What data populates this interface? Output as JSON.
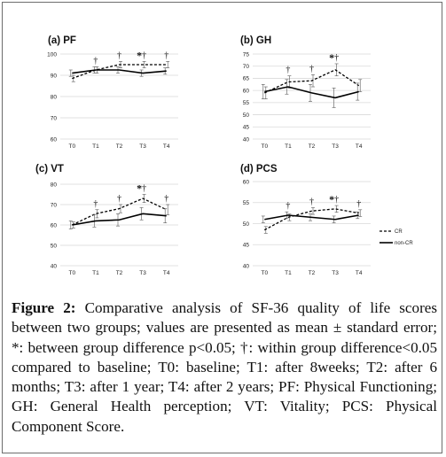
{
  "figure": {
    "caption_label": "Figure 2:",
    "caption_text": "Comparative analysis of SF-36 quality of life scores between two groups; values are presented as mean ± standard error; *: between group difference p<0.05; †: within group difference<0.05 compared to baseline; T0: baseline; T1: after 8weeks; T2: after 6 months; T3: after 1 year; T4: after 2 years; PF: Physical Functioning; GH: General Health perception; VT: Vitality; PCS: Physical Component Score."
  },
  "legend": {
    "items": [
      "CR",
      "non-CR"
    ],
    "placement": "right, beside panel (d)"
  },
  "styles": {
    "cr_line": "dashed",
    "noncr_line": "solid",
    "line_color": "#000000",
    "grid_color": "#d9d9d9"
  },
  "chart_data": [
    {
      "type": "line",
      "title": "(a) PF",
      "categories": [
        "T0",
        "T1",
        "T2",
        "T3",
        "T4"
      ],
      "ylim": [
        60,
        100
      ],
      "yticks": [
        60,
        70,
        80,
        90,
        100
      ],
      "grid": true,
      "series": [
        {
          "name": "CR",
          "values": [
            88.5,
            92.5,
            95,
            95,
            95
          ],
          "errors": [
            1.5,
            1.5,
            1.5,
            1.5,
            1.5
          ]
        },
        {
          "name": "non-CR",
          "values": [
            91,
            92.5,
            92.5,
            91,
            92
          ],
          "errors": [
            1.5,
            1.5,
            1.5,
            1.5,
            1.5
          ]
        }
      ],
      "annotations": [
        "",
        "†",
        "†",
        "*†",
        "†"
      ]
    },
    {
      "type": "line",
      "title": "(b) GH",
      "categories": [
        "T0",
        "T1",
        "T2",
        "T3",
        "T4"
      ],
      "ylim": [
        40,
        75
      ],
      "yticks": [
        40,
        45,
        50,
        55,
        60,
        65,
        70,
        75
      ],
      "grid": true,
      "series": [
        {
          "name": "CR",
          "values": [
            59,
            63.5,
            64,
            68.5,
            62
          ],
          "errors": [
            2.5,
            2.5,
            2.5,
            2.5,
            2.5
          ]
        },
        {
          "name": "non-CR",
          "values": [
            59.5,
            61.5,
            59,
            57,
            59.5
          ],
          "errors": [
            3,
            3,
            3.5,
            4,
            3.5
          ]
        }
      ],
      "annotations": [
        "",
        "†",
        "†",
        "*†",
        ""
      ]
    },
    {
      "type": "line",
      "title": "(c) VT",
      "categories": [
        "T0",
        "T1",
        "T2",
        "T3",
        "T4"
      ],
      "ylim": [
        40,
        80
      ],
      "yticks": [
        40,
        50,
        60,
        70,
        80
      ],
      "grid": true,
      "series": [
        {
          "name": "CR",
          "values": [
            60,
            65.5,
            68,
            73,
            67.5
          ],
          "errors": [
            1.5,
            2,
            2,
            2,
            2.5
          ]
        },
        {
          "name": "non-CR",
          "values": [
            60,
            62,
            62.5,
            65.5,
            64.5
          ],
          "errors": [
            2,
            3,
            3,
            3,
            3.5
          ]
        }
      ],
      "annotations": [
        "",
        "†",
        "†",
        "*†",
        "†"
      ]
    },
    {
      "type": "line",
      "title": "(d) PCS",
      "categories": [
        "T0",
        "T1",
        "T2",
        "T3",
        "T4"
      ],
      "ylim": [
        40,
        60
      ],
      "yticks": [
        40,
        45,
        50,
        55,
        60
      ],
      "grid": true,
      "series": [
        {
          "name": "CR",
          "values": [
            48.5,
            51.5,
            53,
            53.5,
            52.5
          ],
          "errors": [
            0.8,
            0.8,
            0.8,
            0.8,
            0.8
          ]
        },
        {
          "name": "non-CR",
          "values": [
            51,
            52,
            51.5,
            51,
            52
          ],
          "errors": [
            0.8,
            0.8,
            0.8,
            0.8,
            0.8
          ]
        }
      ],
      "annotations": [
        "",
        "†",
        "†",
        "*†",
        "†"
      ]
    }
  ]
}
